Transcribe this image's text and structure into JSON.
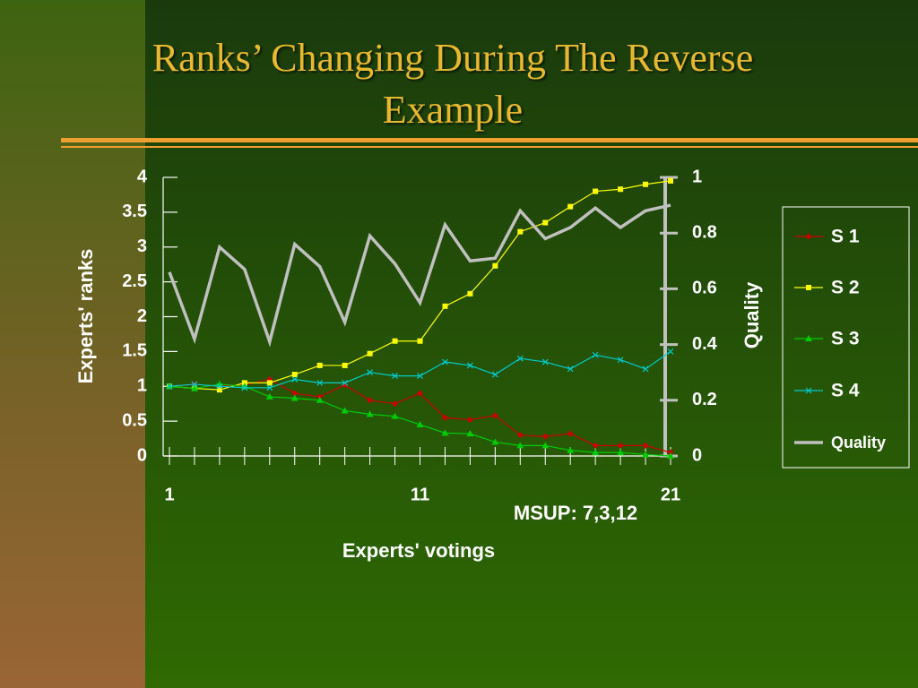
{
  "chart_data": {
    "type": "line",
    "title": "Ranks’ Changing During The Reverse Example",
    "xlabel": "Experts' votings",
    "ylabel": "Experts' ranks",
    "y2label": "Quality",
    "annotation": "MSUP: 7,3,12",
    "x": [
      1,
      2,
      3,
      4,
      5,
      6,
      7,
      8,
      9,
      10,
      11,
      12,
      13,
      14,
      15,
      16,
      17,
      18,
      19,
      20,
      21
    ],
    "xlim": [
      1,
      21
    ],
    "xticks": [
      1,
      11,
      21
    ],
    "ylim": [
      0,
      4
    ],
    "yticks": [
      0,
      0.5,
      1,
      1.5,
      2,
      2.5,
      3,
      3.5,
      4
    ],
    "y2lim": [
      0,
      1
    ],
    "y2ticks": [
      0,
      0.2,
      0.4,
      0.6,
      0.8,
      1
    ],
    "series": [
      {
        "name": "S 1",
        "color": "#cc0000",
        "marker": "diamond",
        "values": [
          1.0,
          1.03,
          1.0,
          1.02,
          1.1,
          0.9,
          0.85,
          1.02,
          0.8,
          0.75,
          0.9,
          0.55,
          0.52,
          0.58,
          0.3,
          0.28,
          0.32,
          0.15,
          0.15,
          0.15,
          0.05
        ]
      },
      {
        "name": "S 2",
        "color": "#ffff00",
        "marker": "square",
        "values": [
          1.0,
          0.97,
          0.95,
          1.05,
          1.05,
          1.17,
          1.3,
          1.3,
          1.47,
          1.65,
          1.65,
          2.15,
          2.33,
          2.73,
          3.22,
          3.35,
          3.58,
          3.8,
          3.83,
          3.9,
          3.95
        ]
      },
      {
        "name": "S 3",
        "color": "#00cc00",
        "marker": "triangle",
        "values": [
          1.0,
          0.97,
          1.03,
          1.0,
          0.85,
          0.83,
          0.8,
          0.65,
          0.6,
          0.57,
          0.45,
          0.33,
          0.32,
          0.2,
          0.15,
          0.15,
          0.08,
          0.05,
          0.05,
          0.02,
          0.0
        ]
      },
      {
        "name": "S 4",
        "color": "#00cccc",
        "marker": "x",
        "values": [
          1.0,
          1.03,
          1.0,
          0.98,
          0.98,
          1.1,
          1.05,
          1.05,
          1.2,
          1.15,
          1.15,
          1.35,
          1.3,
          1.17,
          1.4,
          1.35,
          1.25,
          1.45,
          1.38,
          1.25,
          1.5
        ]
      },
      {
        "name": "Quality",
        "color": "#c0c0c0",
        "marker": "none",
        "axis": "y2",
        "values": [
          0.66,
          0.42,
          0.75,
          0.67,
          0.41,
          0.76,
          0.68,
          0.48,
          0.79,
          0.69,
          0.55,
          0.83,
          0.7,
          0.71,
          0.88,
          0.78,
          0.82,
          0.89,
          0.82,
          0.88,
          0.9
        ]
      }
    ]
  }
}
